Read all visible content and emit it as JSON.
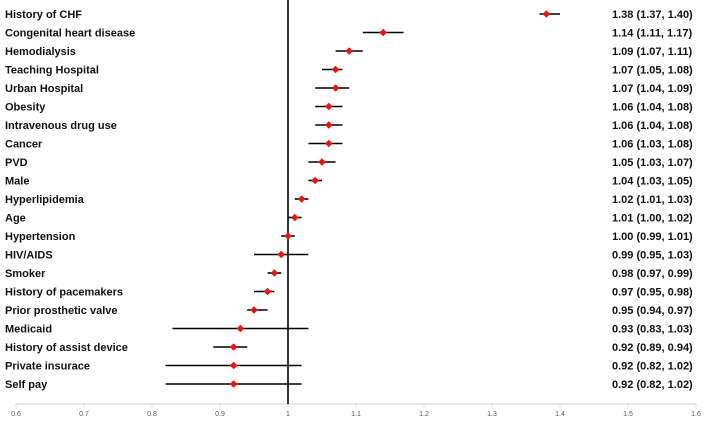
{
  "chart_data": {
    "type": "forest",
    "title": "",
    "xlabel": "",
    "ylabel": "",
    "xlim": [
      0.6,
      1.6
    ],
    "reference_line": 1,
    "x_ticks": [
      "0.6",
      "0.7",
      "0.8",
      "0.9",
      "1",
      "1.1",
      "1.2",
      "1.3",
      "1.4",
      "1.5",
      "1.6"
    ],
    "grid": false,
    "colors": {
      "point": "#e8140f",
      "ci": "#000000",
      "reference": "#000000"
    },
    "rows": [
      {
        "label": "History of CHF",
        "estimate": 1.38,
        "lower": 1.37,
        "upper": 1.4,
        "text": "1.38 (1.37, 1.40)"
      },
      {
        "label": "Congenital heart disease",
        "estimate": 1.14,
        "lower": 1.11,
        "upper": 1.17,
        "text": "1.14 (1.11, 1.17)"
      },
      {
        "label": "Hemodialysis",
        "estimate": 1.09,
        "lower": 1.07,
        "upper": 1.11,
        "text": "1.09 (1.07, 1.11)"
      },
      {
        "label": "Teaching Hospital",
        "estimate": 1.07,
        "lower": 1.05,
        "upper": 1.08,
        "text": "1.07 (1.05, 1.08)"
      },
      {
        "label": "Urban Hospital",
        "estimate": 1.07,
        "lower": 1.04,
        "upper": 1.09,
        "text": "1.07 (1.04, 1.09)"
      },
      {
        "label": "Obesity",
        "estimate": 1.06,
        "lower": 1.04,
        "upper": 1.08,
        "text": "1.06 (1.04, 1.08)"
      },
      {
        "label": "Intravenous drug use",
        "estimate": 1.06,
        "lower": 1.04,
        "upper": 1.08,
        "text": "1.06 (1.04, 1.08)"
      },
      {
        "label": "Cancer",
        "estimate": 1.06,
        "lower": 1.03,
        "upper": 1.08,
        "text": "1.06 (1.03, 1.08)"
      },
      {
        "label": "PVD",
        "estimate": 1.05,
        "lower": 1.03,
        "upper": 1.07,
        "text": "1.05 (1.03, 1.07)"
      },
      {
        "label": "Male",
        "estimate": 1.04,
        "lower": 1.03,
        "upper": 1.05,
        "text": "1.04 (1.03, 1.05)"
      },
      {
        "label": "Hyperlipidemia",
        "estimate": 1.02,
        "lower": 1.01,
        "upper": 1.03,
        "text": "1.02 (1.01, 1.03)"
      },
      {
        "label": "Age",
        "estimate": 1.01,
        "lower": 1.0,
        "upper": 1.02,
        "text": "1.01 (1.00, 1.02)"
      },
      {
        "label": "Hypertension",
        "estimate": 1.0,
        "lower": 0.99,
        "upper": 1.01,
        "text": "1.00 (0.99, 1.01)"
      },
      {
        "label": "HIV/AIDS",
        "estimate": 0.99,
        "lower": 0.95,
        "upper": 1.03,
        "text": "0.99 (0.95, 1.03)"
      },
      {
        "label": "Smoker",
        "estimate": 0.98,
        "lower": 0.97,
        "upper": 0.99,
        "text": "0.98 (0.97, 0.99)"
      },
      {
        "label": "History of pacemakers",
        "estimate": 0.97,
        "lower": 0.95,
        "upper": 0.98,
        "text": "0.97 (0.95, 0.98)"
      },
      {
        "label": "Prior prosthetic valve",
        "estimate": 0.95,
        "lower": 0.94,
        "upper": 0.97,
        "text": "0.95 (0.94, 0.97)"
      },
      {
        "label": "Medicaid",
        "estimate": 0.93,
        "lower": 0.83,
        "upper": 1.03,
        "text": "0.93 (0.83, 1.03)"
      },
      {
        "label": "History of assist device",
        "estimate": 0.92,
        "lower": 0.89,
        "upper": 0.94,
        "text": "0.92 (0.89, 0.94)"
      },
      {
        "label": "Private insurace",
        "estimate": 0.92,
        "lower": 0.82,
        "upper": 1.02,
        "text": "0.92 (0.82, 1.02)"
      },
      {
        "label": "Self pay",
        "estimate": 0.92,
        "lower": 0.82,
        "upper": 1.02,
        "text": "0.92 (0.82, 1.02)"
      }
    ]
  }
}
